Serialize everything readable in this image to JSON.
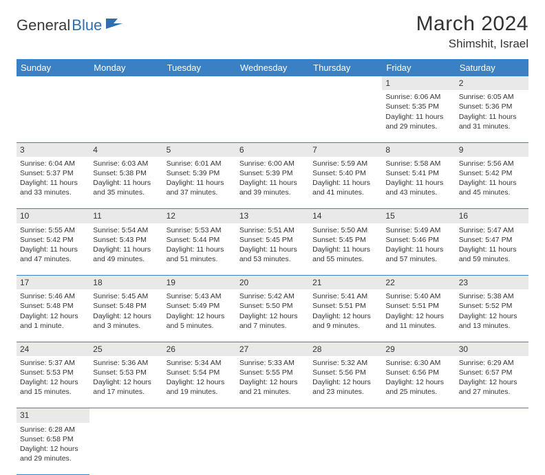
{
  "logo": {
    "word1": "General",
    "word2": "Blue"
  },
  "title": "March 2024",
  "location": "Shimshit, Israel",
  "dayHeaders": [
    "Sunday",
    "Monday",
    "Tuesday",
    "Wednesday",
    "Thursday",
    "Friday",
    "Saturday"
  ],
  "colors": {
    "headerBg": "#3a80c4",
    "headerText": "#ffffff",
    "dayNumBg": "#e9e9e9",
    "border": "#3a80c4",
    "text": "#333333",
    "logoBlue": "#2f6fb0",
    "logoDark": "#3a3a3a",
    "background": "#ffffff"
  },
  "typography": {
    "titleFontSize": 30,
    "locationFontSize": 17,
    "headerFontSize": 13,
    "dayNumFontSize": 12,
    "cellFontSize": 10.5
  },
  "weeks": [
    [
      null,
      null,
      null,
      null,
      null,
      {
        "n": "1",
        "sunrise": "Sunrise: 6:06 AM",
        "sunset": "Sunset: 5:35 PM",
        "daylight1": "Daylight: 11 hours",
        "daylight2": "and 29 minutes."
      },
      {
        "n": "2",
        "sunrise": "Sunrise: 6:05 AM",
        "sunset": "Sunset: 5:36 PM",
        "daylight1": "Daylight: 11 hours",
        "daylight2": "and 31 minutes."
      }
    ],
    [
      {
        "n": "3",
        "sunrise": "Sunrise: 6:04 AM",
        "sunset": "Sunset: 5:37 PM",
        "daylight1": "Daylight: 11 hours",
        "daylight2": "and 33 minutes."
      },
      {
        "n": "4",
        "sunrise": "Sunrise: 6:03 AM",
        "sunset": "Sunset: 5:38 PM",
        "daylight1": "Daylight: 11 hours",
        "daylight2": "and 35 minutes."
      },
      {
        "n": "5",
        "sunrise": "Sunrise: 6:01 AM",
        "sunset": "Sunset: 5:39 PM",
        "daylight1": "Daylight: 11 hours",
        "daylight2": "and 37 minutes."
      },
      {
        "n": "6",
        "sunrise": "Sunrise: 6:00 AM",
        "sunset": "Sunset: 5:39 PM",
        "daylight1": "Daylight: 11 hours",
        "daylight2": "and 39 minutes."
      },
      {
        "n": "7",
        "sunrise": "Sunrise: 5:59 AM",
        "sunset": "Sunset: 5:40 PM",
        "daylight1": "Daylight: 11 hours",
        "daylight2": "and 41 minutes."
      },
      {
        "n": "8",
        "sunrise": "Sunrise: 5:58 AM",
        "sunset": "Sunset: 5:41 PM",
        "daylight1": "Daylight: 11 hours",
        "daylight2": "and 43 minutes."
      },
      {
        "n": "9",
        "sunrise": "Sunrise: 5:56 AM",
        "sunset": "Sunset: 5:42 PM",
        "daylight1": "Daylight: 11 hours",
        "daylight2": "and 45 minutes."
      }
    ],
    [
      {
        "n": "10",
        "sunrise": "Sunrise: 5:55 AM",
        "sunset": "Sunset: 5:42 PM",
        "daylight1": "Daylight: 11 hours",
        "daylight2": "and 47 minutes."
      },
      {
        "n": "11",
        "sunrise": "Sunrise: 5:54 AM",
        "sunset": "Sunset: 5:43 PM",
        "daylight1": "Daylight: 11 hours",
        "daylight2": "and 49 minutes."
      },
      {
        "n": "12",
        "sunrise": "Sunrise: 5:53 AM",
        "sunset": "Sunset: 5:44 PM",
        "daylight1": "Daylight: 11 hours",
        "daylight2": "and 51 minutes."
      },
      {
        "n": "13",
        "sunrise": "Sunrise: 5:51 AM",
        "sunset": "Sunset: 5:45 PM",
        "daylight1": "Daylight: 11 hours",
        "daylight2": "and 53 minutes."
      },
      {
        "n": "14",
        "sunrise": "Sunrise: 5:50 AM",
        "sunset": "Sunset: 5:45 PM",
        "daylight1": "Daylight: 11 hours",
        "daylight2": "and 55 minutes."
      },
      {
        "n": "15",
        "sunrise": "Sunrise: 5:49 AM",
        "sunset": "Sunset: 5:46 PM",
        "daylight1": "Daylight: 11 hours",
        "daylight2": "and 57 minutes."
      },
      {
        "n": "16",
        "sunrise": "Sunrise: 5:47 AM",
        "sunset": "Sunset: 5:47 PM",
        "daylight1": "Daylight: 11 hours",
        "daylight2": "and 59 minutes."
      }
    ],
    [
      {
        "n": "17",
        "sunrise": "Sunrise: 5:46 AM",
        "sunset": "Sunset: 5:48 PM",
        "daylight1": "Daylight: 12 hours",
        "daylight2": "and 1 minute."
      },
      {
        "n": "18",
        "sunrise": "Sunrise: 5:45 AM",
        "sunset": "Sunset: 5:48 PM",
        "daylight1": "Daylight: 12 hours",
        "daylight2": "and 3 minutes."
      },
      {
        "n": "19",
        "sunrise": "Sunrise: 5:43 AM",
        "sunset": "Sunset: 5:49 PM",
        "daylight1": "Daylight: 12 hours",
        "daylight2": "and 5 minutes."
      },
      {
        "n": "20",
        "sunrise": "Sunrise: 5:42 AM",
        "sunset": "Sunset: 5:50 PM",
        "daylight1": "Daylight: 12 hours",
        "daylight2": "and 7 minutes."
      },
      {
        "n": "21",
        "sunrise": "Sunrise: 5:41 AM",
        "sunset": "Sunset: 5:51 PM",
        "daylight1": "Daylight: 12 hours",
        "daylight2": "and 9 minutes."
      },
      {
        "n": "22",
        "sunrise": "Sunrise: 5:40 AM",
        "sunset": "Sunset: 5:51 PM",
        "daylight1": "Daylight: 12 hours",
        "daylight2": "and 11 minutes."
      },
      {
        "n": "23",
        "sunrise": "Sunrise: 5:38 AM",
        "sunset": "Sunset: 5:52 PM",
        "daylight1": "Daylight: 12 hours",
        "daylight2": "and 13 minutes."
      }
    ],
    [
      {
        "n": "24",
        "sunrise": "Sunrise: 5:37 AM",
        "sunset": "Sunset: 5:53 PM",
        "daylight1": "Daylight: 12 hours",
        "daylight2": "and 15 minutes."
      },
      {
        "n": "25",
        "sunrise": "Sunrise: 5:36 AM",
        "sunset": "Sunset: 5:53 PM",
        "daylight1": "Daylight: 12 hours",
        "daylight2": "and 17 minutes."
      },
      {
        "n": "26",
        "sunrise": "Sunrise: 5:34 AM",
        "sunset": "Sunset: 5:54 PM",
        "daylight1": "Daylight: 12 hours",
        "daylight2": "and 19 minutes."
      },
      {
        "n": "27",
        "sunrise": "Sunrise: 5:33 AM",
        "sunset": "Sunset: 5:55 PM",
        "daylight1": "Daylight: 12 hours",
        "daylight2": "and 21 minutes."
      },
      {
        "n": "28",
        "sunrise": "Sunrise: 5:32 AM",
        "sunset": "Sunset: 5:56 PM",
        "daylight1": "Daylight: 12 hours",
        "daylight2": "and 23 minutes."
      },
      {
        "n": "29",
        "sunrise": "Sunrise: 6:30 AM",
        "sunset": "Sunset: 6:56 PM",
        "daylight1": "Daylight: 12 hours",
        "daylight2": "and 25 minutes."
      },
      {
        "n": "30",
        "sunrise": "Sunrise: 6:29 AM",
        "sunset": "Sunset: 6:57 PM",
        "daylight1": "Daylight: 12 hours",
        "daylight2": "and 27 minutes."
      }
    ],
    [
      {
        "n": "31",
        "sunrise": "Sunrise: 6:28 AM",
        "sunset": "Sunset: 6:58 PM",
        "daylight1": "Daylight: 12 hours",
        "daylight2": "and 29 minutes."
      },
      null,
      null,
      null,
      null,
      null,
      null
    ]
  ]
}
